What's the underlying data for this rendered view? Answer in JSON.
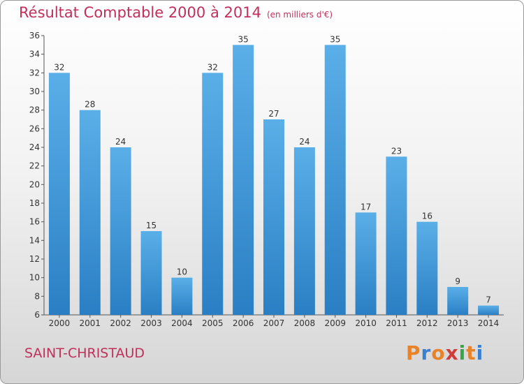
{
  "title": "Résultat Comptable 2000 à 2014",
  "subtitle": "(en milliers d'€)",
  "commune": "SAINT-CHRISTAUD",
  "logo": {
    "letters": [
      "P",
      "r",
      "o",
      "x",
      "i",
      "t",
      "i"
    ],
    "colors": [
      "#e8832a",
      "#3a7fd0",
      "#e8832a",
      "#d23a3a",
      "#3aa548",
      "#e8832a",
      "#3a7fd0"
    ]
  },
  "colors": {
    "title": "#c0305a",
    "bar_light": "#5aafe8",
    "bar_dark": "#2a7fc4"
  },
  "chart_data": {
    "type": "bar",
    "categories": [
      "2000",
      "2001",
      "2002",
      "2003",
      "2004",
      "2005",
      "2006",
      "2007",
      "2008",
      "2009",
      "2010",
      "2011",
      "2012",
      "2013",
      "2014"
    ],
    "values": [
      32,
      28,
      24,
      15,
      10,
      32,
      35,
      27,
      24,
      35,
      17,
      23,
      16,
      9,
      7
    ],
    "ylim": [
      6,
      36
    ],
    "yticks": [
      6,
      8,
      10,
      12,
      14,
      16,
      18,
      20,
      22,
      24,
      26,
      28,
      30,
      32,
      34,
      36
    ],
    "grid": false,
    "data_labels": true
  }
}
